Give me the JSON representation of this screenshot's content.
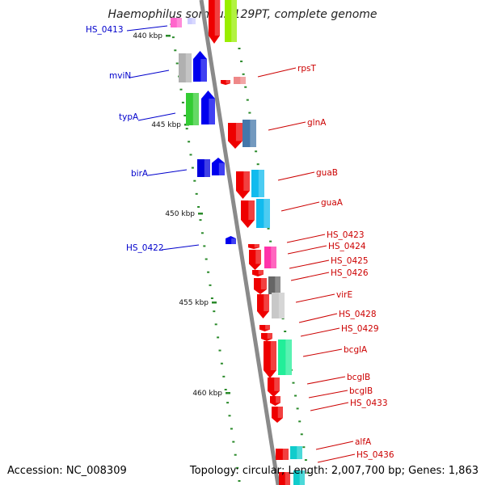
{
  "title": "Haemophilus somnus 129PT, complete genome",
  "footer": {
    "accession": "Accession: NC_008309",
    "topology": "Topology: circular; Length: 2,007,700 bp; Genes: 1,863"
  },
  "colors": {
    "backbone": "#8a8a8a",
    "forward_label": "#0000cc",
    "reverse_label": "#cc0000",
    "tick": "#2a8a2a"
  },
  "kbp_ticks": [
    {
      "kbp": 440,
      "label": "440 kbp"
    },
    {
      "kbp": 445,
      "label": "445 kbp"
    },
    {
      "kbp": 450,
      "label": "450 kbp"
    },
    {
      "kbp": 455,
      "label": "455 kbp"
    },
    {
      "kbp": 460,
      "label": "460 kbp"
    }
  ],
  "forward_labels": [
    "HS_0413",
    "mviN",
    "typA",
    "birA",
    "HS_0422"
  ],
  "reverse_labels": [
    "rpsT",
    "glnA",
    "guaB",
    "guaA",
    "HS_0423",
    "HS_0424",
    "HS_0425",
    "HS_0426",
    "virE",
    "HS_0428",
    "HS_0429",
    "bcglA",
    "bcglB",
    "bcglB",
    "HS_0433",
    "alfA",
    "HS_0436"
  ]
}
